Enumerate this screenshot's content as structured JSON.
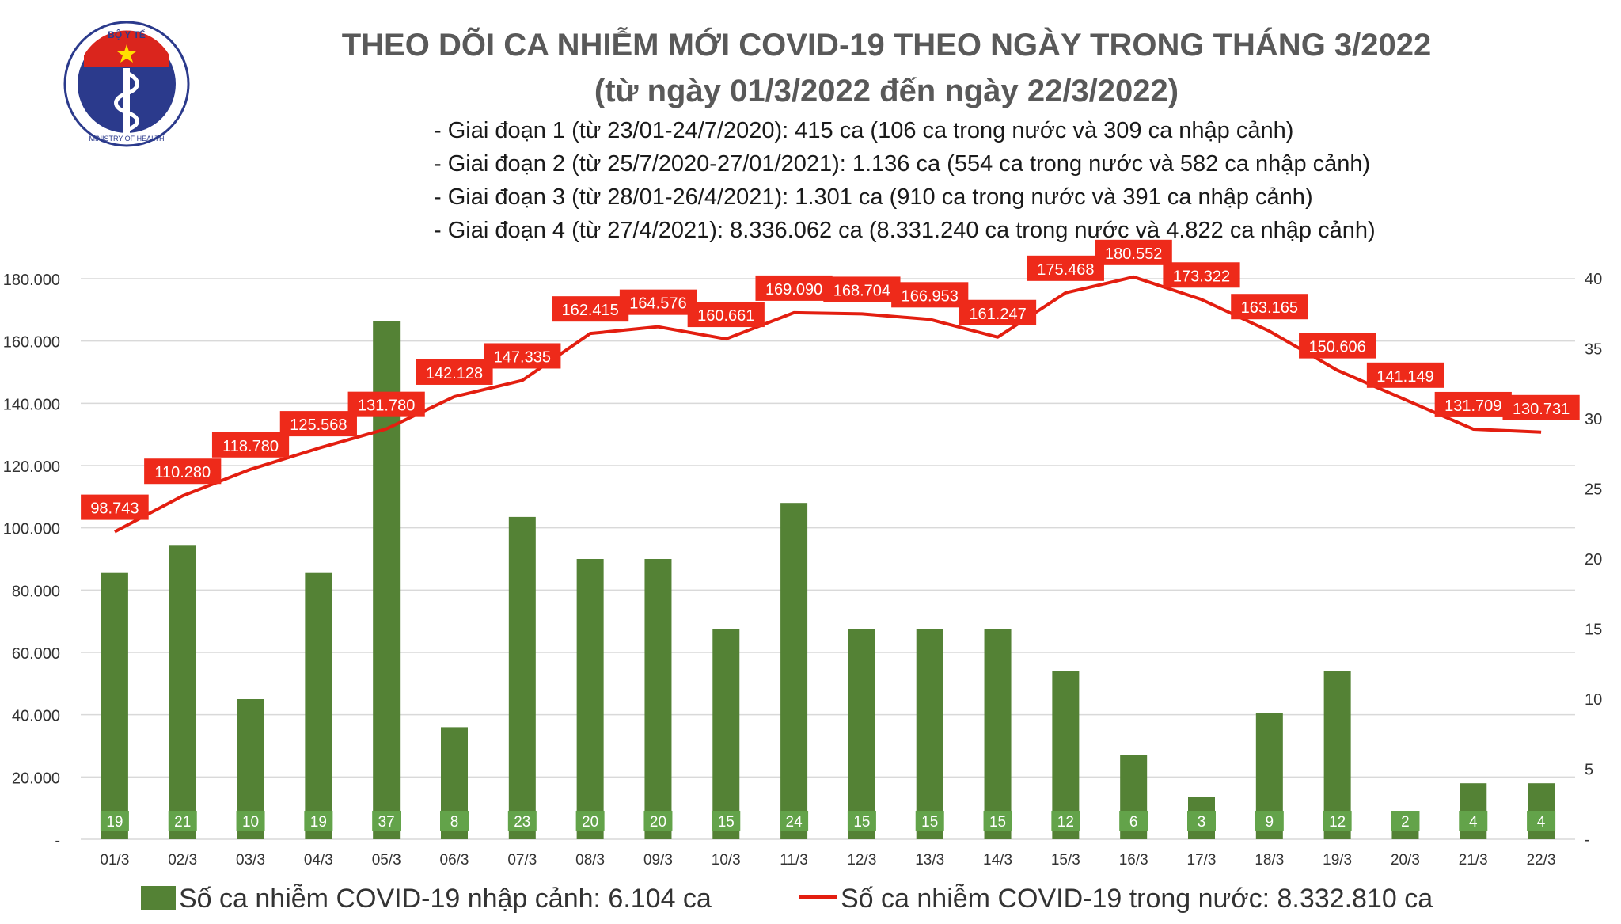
{
  "logo": {
    "top_text": "BỘ Y TẾ",
    "bottom_text": "MINISTRY OF HEALTH"
  },
  "title": {
    "line1": "THEO DÕI CA NHIỄM MỚI COVID-19 THEO NGÀY TRONG THÁNG 3/2022",
    "line2": "(từ ngày 01/3/2022 đến ngày 22/3/2022)"
  },
  "phases": [
    "- Giai đoạn 1 (từ 23/01-24/7/2020): 415 ca (106 ca trong nước và 309 ca nhập cảnh)",
    "- Giai đoạn 2 (từ 25/7/2020-27/01/2021): 1.136 ca (554 ca trong nước và 582 ca nhập cảnh)",
    "- Giai đoạn 3 (từ 28/01-26/4/2021): 1.301 ca (910 ca trong nước và 391 ca nhập cảnh)",
    "- Giai đoạn 4 (từ 27/4/2021): 8.336.062 ca (8.331.240 ca trong nước và 4.822 ca nhập cảnh)"
  ],
  "colors": {
    "bar": "#548235",
    "bar_label_bg": "#63a34a",
    "line": "#e31e10",
    "line_label_bg": "#ee2a1a",
    "title": "#595959",
    "grid": "#d9d9d9"
  },
  "legend": {
    "bars": "Số ca nhiễm COVID-19 nhập cảnh: 6.104 ca",
    "line": "Số ca nhiễm COVID-19 trong nước: 8.332.810 ca"
  },
  "chart_data": {
    "type": "bar+line",
    "categories": [
      "01/3",
      "02/3",
      "03/3",
      "04/3",
      "05/3",
      "06/3",
      "07/3",
      "08/3",
      "09/3",
      "10/3",
      "11/3",
      "12/3",
      "13/3",
      "14/3",
      "15/3",
      "16/3",
      "17/3",
      "18/3",
      "19/3",
      "20/3",
      "21/3",
      "22/3"
    ],
    "series": [
      {
        "name": "Số ca nhiễm COVID-19 nhập cảnh: 6.104 ca",
        "type": "bar",
        "axis": "right",
        "values": [
          19,
          21,
          10,
          19,
          37,
          8,
          23,
          20,
          20,
          15,
          24,
          15,
          15,
          15,
          12,
          6,
          3,
          9,
          12,
          2,
          4,
          4
        ]
      },
      {
        "name": "Số ca nhiễm COVID-19 trong nước: 8.332.810 ca",
        "type": "line",
        "axis": "left",
        "values": [
          98743,
          110280,
          118780,
          125568,
          131780,
          142128,
          147335,
          162415,
          164576,
          160661,
          169090,
          168704,
          166953,
          161247,
          175468,
          180552,
          173322,
          163165,
          150606,
          141149,
          131709,
          130731
        ],
        "labels": [
          "98.743",
          "110.280",
          "118.780",
          "125.568",
          "131.780",
          "142.128",
          "147.335",
          "162.415",
          "164.576",
          "160.661",
          "169.090",
          "168.704",
          "166.953",
          "161.247",
          "175.468",
          "180.552",
          "173.322",
          "163.165",
          "150.606",
          "141.149",
          "131.709",
          "130.731"
        ]
      }
    ],
    "y_left": {
      "range": [
        0,
        180000
      ],
      "ticks": [
        "-",
        "20.000",
        "40.000",
        "60.000",
        "80.000",
        "100.000",
        "120.000",
        "140.000",
        "160.000",
        "180.000"
      ]
    },
    "y_right": {
      "range": [
        0,
        40
      ],
      "ticks": [
        "-",
        "5",
        "10",
        "15",
        "20",
        "25",
        "30",
        "35",
        "40"
      ]
    },
    "grid": true,
    "legend_position": "bottom"
  }
}
